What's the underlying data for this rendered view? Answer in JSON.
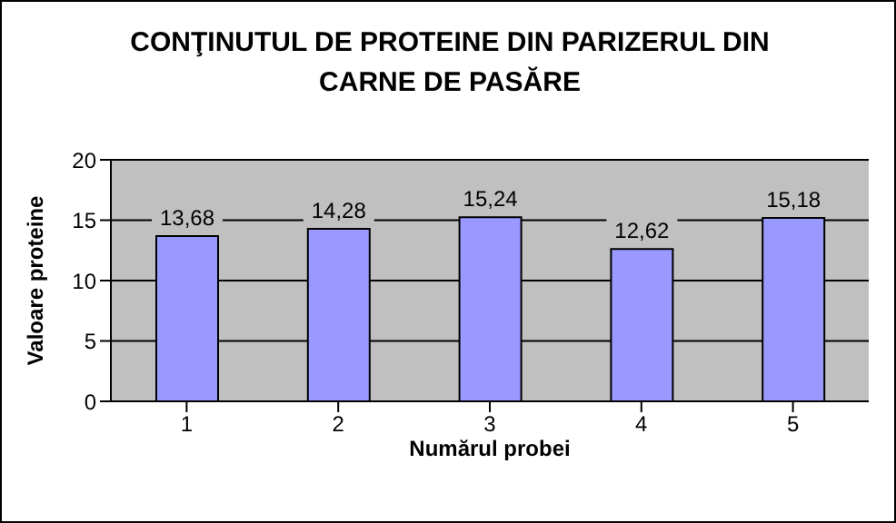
{
  "chart_data": {
    "type": "bar",
    "title": "CONŢINUTUL DE PROTEINE DIN PARIZERUL DIN CARNE DE PASĂRE",
    "xlabel": "Numărul probei",
    "ylabel": "Valoare proteine",
    "categories": [
      "1",
      "2",
      "3",
      "4",
      "5"
    ],
    "values": [
      13.68,
      14.28,
      15.24,
      12.62,
      15.18
    ],
    "value_labels": [
      "13,68",
      "14,28",
      "15,24",
      "12,62",
      "15,18"
    ],
    "color": "#9999ff",
    "ylim": [
      0,
      20
    ],
    "yticks": [
      0,
      5,
      10,
      15,
      20
    ],
    "grid": "y",
    "legend": false
  }
}
